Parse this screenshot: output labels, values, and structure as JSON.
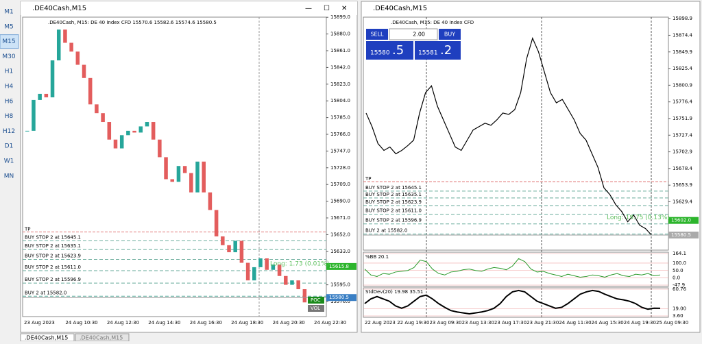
{
  "toolbar": [
    "M1",
    "M5",
    "M15",
    "M30",
    "H1",
    "H4",
    "H6",
    "H8",
    "H12",
    "D1",
    "W1",
    "MN"
  ],
  "tabs": [
    ".DE40Cash,M15",
    ".DE40Cash,M15"
  ],
  "left": {
    "title": ".DE40Cash,M15",
    "info": ".DE40Cash, M15: DE 40 Index CFD  15570.6 15582.6 15574.6 15580.5",
    "ticks": [
      {
        "value": 15899,
        "label": "15899.0"
      },
      {
        "value": 15880,
        "label": "15880.0"
      },
      {
        "value": 15861,
        "label": "15861.0"
      },
      {
        "value": 15842,
        "label": "15842.0"
      },
      {
        "value": 15823,
        "label": "15823.0"
      },
      {
        "value": 15804,
        "label": "15804.0"
      },
      {
        "value": 15785,
        "label": "15785.0"
      },
      {
        "value": 15766,
        "label": "15766.0"
      },
      {
        "value": 15747,
        "label": "15747.0"
      },
      {
        "value": 15728,
        "label": "15728.0"
      },
      {
        "value": 15709,
        "label": "15709.0"
      },
      {
        "value": 15690,
        "label": "15690.0"
      },
      {
        "value": 15671,
        "label": "15671.0"
      },
      {
        "value": 15652,
        "label": "15652.0"
      },
      {
        "value": 15633,
        "label": "15633.0"
      },
      {
        "value": 15595,
        "label": "15595.0"
      },
      {
        "value": 15576,
        "label": "15576.0"
      }
    ],
    "times": [
      "23 Aug 2023",
      "24 Aug 10:30",
      "24 Aug 12:30",
      "24 Aug 14:30",
      "24 Aug 16:30",
      "24 Aug 18:30",
      "24 Aug 20:30",
      "24 Aug 22:30"
    ],
    "tp": "TP",
    "tp_price": 15655,
    "orders": [
      {
        "label": "BUY STOP 2 at 15645.1",
        "price": 15645.1
      },
      {
        "label": "BUY STOP 2 at 15635.1",
        "price": 15635.1
      },
      {
        "label": "BUY STOP 2 at 15623.9",
        "price": 15623.9
      },
      {
        "label": "BUY STOP 2 at 15611.0",
        "price": 15611.0
      },
      {
        "label": "BUY STOP 2 at 15596.9",
        "price": 15596.9
      },
      {
        "label": "BUY 2 at 15582.0",
        "price": 15582.0
      }
    ],
    "long": "Long: 1.73  (0.01%)",
    "green_price": {
      "value": 15615.8,
      "label": "15615.8"
    },
    "bid_price": {
      "value": 15580.5,
      "label": "15580.5"
    },
    "poc": "POC",
    "vol": "VOL",
    "closes": [
      15770,
      15805,
      15812,
      15808,
      15850,
      15885,
      15870,
      15860,
      15845,
      15830,
      15800,
      15790,
      15780,
      15760,
      15750,
      15765,
      15770,
      15768,
      15775,
      15780,
      15760,
      15740,
      15715,
      15712,
      15730,
      15722,
      15700,
      15735,
      15700,
      15680,
      15650,
      15640,
      15632,
      15645,
      15620,
      15600,
      15615,
      15625,
      15612,
      15618,
      15605,
      15595,
      15600,
      15590,
      15575,
      15580.5
    ]
  },
  "right": {
    "title": ".DE40Cash,M15",
    "info": ".DE40Cash, M15: DE 40 Index CFD",
    "sell": "SELL",
    "buy": "BUY",
    "lot": "2.00",
    "bid_big": "15580",
    "bid_small": ".5",
    "ask_big": "15581",
    "ask_small": ".2",
    "ticks": [
      {
        "value": 15898.9,
        "label": "15898.9"
      },
      {
        "value": 15874.4,
        "label": "15874.4"
      },
      {
        "value": 15849.9,
        "label": "15849.9"
      },
      {
        "value": 15825.4,
        "label": "15825.4"
      },
      {
        "value": 15800.9,
        "label": "15800.9"
      },
      {
        "value": 15776.4,
        "label": "15776.4"
      },
      {
        "value": 15751.9,
        "label": "15751.9"
      },
      {
        "value": 15727.4,
        "label": "15727.4"
      },
      {
        "value": 15702.9,
        "label": "15702.9"
      },
      {
        "value": 15678.4,
        "label": "15678.4"
      },
      {
        "value": 15653.9,
        "label": "15653.9"
      },
      {
        "value": 15629.4,
        "label": "15629.4"
      }
    ],
    "times": [
      "22 Aug 2023",
      "22 Aug 19:30",
      "23 Aug 09:30",
      "23 Aug 13:30",
      "23 Aug 17:30",
      "23 Aug 21:30",
      "24 Aug 11:30",
      "24 Aug 15:30",
      "24 Aug 19:30",
      "25 Aug 09:30"
    ],
    "tp": "TP",
    "tp_price": 15659,
    "orders": [
      {
        "label": "BUY STOP 2 at 15645.1",
        "price": 15645.1
      },
      {
        "label": "BUY STOP 2 at 15635.1",
        "price": 15635.1
      },
      {
        "label": "BUY STOP 2 at 15623.9",
        "price": 15623.9
      },
      {
        "label": "BUY STOP 2 at 15611.0",
        "price": 15611.0
      },
      {
        "label": "BUY STOP 2 at 15596.9",
        "price": 15596.9
      },
      {
        "label": "BUY 2 at 15582.0",
        "price": 15582.0
      }
    ],
    "long": "Long: 19.75  (0.13%)",
    "green_price": {
      "value": 15602.0,
      "label": "15602.0"
    },
    "bid_price": {
      "value": 15580.5,
      "label": "15580.5"
    },
    "closes": [
      15760,
      15740,
      15715,
      15705,
      15710,
      15700,
      15705,
      15712,
      15720,
      15760,
      15790,
      15800,
      15770,
      15750,
      15730,
      15710,
      15705,
      15720,
      15735,
      15740,
      15745,
      15742,
      15750,
      15760,
      15758,
      15765,
      15790,
      15840,
      15870,
      15850,
      15820,
      15790,
      15775,
      15780,
      15765,
      15750,
      15730,
      15720,
      15700,
      15680,
      15650,
      15640,
      15625,
      15615,
      15600,
      15610,
      15595,
      15590,
      15580.5
    ],
    "bb": {
      "title": "%BB 20.1",
      "ticks": [
        {
          "value": 164.1,
          "label": "164.1"
        },
        {
          "value": 100,
          "label": "100.0"
        },
        {
          "value": 50,
          "label": "50.0"
        },
        {
          "value": 0,
          "label": "0.0"
        },
        {
          "value": -47.9,
          "label": "-47.9"
        }
      ],
      "values": [
        60,
        20,
        10,
        30,
        25,
        40,
        45,
        50,
        70,
        120,
        110,
        60,
        30,
        20,
        40,
        45,
        55,
        60,
        50,
        45,
        60,
        70,
        65,
        55,
        80,
        130,
        110,
        60,
        40,
        45,
        30,
        20,
        10,
        25,
        15,
        5,
        10,
        20,
        15,
        5,
        20,
        30,
        15,
        10,
        25,
        20,
        30,
        15,
        20
      ]
    },
    "sd": {
      "title": "StdDev(20) 19.98 35.51",
      "ticks": [
        {
          "value": 60.76,
          "label": "60.76"
        },
        {
          "value": 19,
          "label": "19.00"
        },
        {
          "value": 3.6,
          "label": "3.60"
        }
      ],
      "values": [
        30,
        40,
        45,
        40,
        35,
        25,
        20,
        25,
        35,
        45,
        48,
        40,
        30,
        22,
        15,
        12,
        10,
        8,
        10,
        12,
        15,
        20,
        30,
        45,
        55,
        58,
        55,
        45,
        35,
        30,
        25,
        20,
        22,
        30,
        40,
        50,
        55,
        58,
        56,
        50,
        45,
        40,
        38,
        35,
        30,
        22,
        18,
        20,
        19.98
      ]
    }
  }
}
